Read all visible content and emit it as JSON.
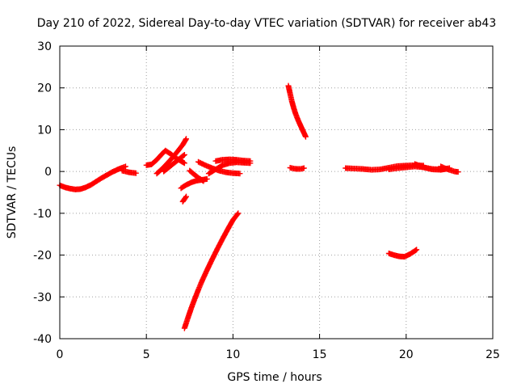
{
  "chart_data": {
    "type": "scatter",
    "title": "Day 210 of 2022, Sidereal Day-to-day VTEC variation (SDTVAR) for receiver ab43",
    "xlabel": "GPS time / hours",
    "ylabel": "SDTVAR / TECUs",
    "xlim": [
      0,
      25
    ],
    "ylim": [
      -40,
      30
    ],
    "xticks": [
      "0",
      "5",
      "10",
      "15",
      "20",
      "25"
    ],
    "yticks": [
      "30",
      "20",
      "10",
      "0",
      "-10",
      "-20",
      "-30",
      "-40"
    ],
    "grid": true,
    "marker": "plus",
    "color": "#ff0000",
    "series": [
      {
        "x": [
          0.0,
          0.3,
          0.6,
          0.9,
          1.2,
          1.5,
          1.8,
          2.1,
          2.4,
          2.7,
          3.0,
          3.3,
          3.6,
          3.8
        ],
        "y": [
          -3.3,
          -3.8,
          -4.1,
          -4.3,
          -4.2,
          -3.8,
          -3.2,
          -2.4,
          -1.6,
          -0.9,
          -0.2,
          0.4,
          0.9,
          1.2
        ]
      },
      {
        "x": [
          3.6,
          3.8,
          4.0,
          4.2,
          4.4
        ],
        "y": [
          0.2,
          0.0,
          -0.2,
          -0.3,
          -0.4
        ]
      },
      {
        "x": [
          5.0,
          5.3,
          5.6,
          5.9,
          6.1,
          6.4,
          6.7,
          7.0,
          7.2
        ],
        "y": [
          1.5,
          1.7,
          2.8,
          4.2,
          5.0,
          4.2,
          3.2,
          2.5,
          2.0
        ]
      },
      {
        "x": [
          5.6,
          5.9,
          6.2,
          6.5,
          6.8,
          7.1,
          7.3
        ],
        "y": [
          -0.5,
          0.6,
          1.9,
          3.3,
          4.8,
          6.4,
          7.8
        ]
      },
      {
        "x": [
          6.0,
          6.3,
          6.6,
          6.9,
          7.2
        ],
        "y": [
          0.0,
          1.0,
          2.0,
          3.0,
          4.0
        ]
      },
      {
        "x": [
          7.0,
          7.3,
          7.6,
          7.9,
          8.2,
          8.5
        ],
        "y": [
          -4.0,
          -3.2,
          -2.6,
          -2.2,
          -2.0,
          -1.8
        ]
      },
      {
        "x": [
          7.1,
          7.3
        ],
        "y": [
          -7.2,
          -6.0
        ]
      },
      {
        "x": [
          7.5,
          7.7,
          8.0,
          8.3
        ],
        "y": [
          0.2,
          -0.5,
          -1.5,
          -2.3
        ]
      },
      {
        "x": [
          8.0,
          8.4,
          8.8,
          9.2,
          9.6,
          10.0,
          10.4
        ],
        "y": [
          2.3,
          1.5,
          0.8,
          0.2,
          -0.2,
          -0.4,
          -0.5
        ]
      },
      {
        "x": [
          8.6,
          9.0,
          9.4,
          9.8,
          10.2,
          10.6,
          11.0
        ],
        "y": [
          -0.5,
          0.5,
          1.5,
          2.0,
          2.2,
          2.1,
          2.0
        ]
      },
      {
        "x": [
          9.0,
          9.4,
          9.8,
          10.2,
          10.6,
          11.0
        ],
        "y": [
          2.5,
          2.8,
          2.9,
          2.8,
          2.6,
          2.5
        ]
      },
      {
        "x": [
          7.2,
          7.4,
          7.6,
          7.8,
          8.0,
          8.2,
          8.5,
          8.8,
          9.1,
          9.4,
          9.7,
          10.0,
          10.3
        ],
        "y": [
          -37.5,
          -35.0,
          -32.6,
          -30.4,
          -28.3,
          -26.3,
          -23.6,
          -21.0,
          -18.5,
          -16.1,
          -13.8,
          -11.6,
          -10.0
        ]
      },
      {
        "x": [
          13.2,
          13.3,
          13.4,
          13.5,
          13.6,
          13.7,
          13.8,
          13.9,
          14.0,
          14.1,
          14.2
        ],
        "y": [
          20.5,
          18.6,
          16.8,
          15.3,
          14.0,
          12.9,
          11.9,
          11.0,
          10.1,
          9.2,
          8.3
        ]
      },
      {
        "x": [
          13.3,
          13.5,
          13.7,
          13.9,
          14.1
        ],
        "y": [
          0.9,
          0.7,
          0.6,
          0.6,
          0.8
        ]
      },
      {
        "x": [
          16.5,
          17.0,
          17.5,
          18.0,
          18.5,
          19.0,
          19.5,
          20.0,
          20.5,
          21.0
        ],
        "y": [
          0.8,
          0.7,
          0.6,
          0.4,
          0.5,
          0.9,
          1.3,
          1.4,
          1.5,
          1.4
        ]
      },
      {
        "x": [
          19.0,
          19.5,
          20.0,
          20.5,
          21.0,
          21.5,
          22.0,
          22.5
        ],
        "y": [
          0.5,
          0.8,
          1.0,
          1.2,
          1.0,
          0.6,
          0.5,
          0.8
        ]
      },
      {
        "x": [
          20.5,
          21.0,
          21.5,
          22.0,
          22.3
        ],
        "y": [
          1.8,
          1.0,
          0.5,
          0.4,
          0.6
        ]
      },
      {
        "x": [
          22.0,
          22.4,
          22.8,
          23.0
        ],
        "y": [
          1.2,
          0.5,
          0.0,
          -0.1
        ]
      },
      {
        "x": [
          19.0,
          19.3,
          19.6,
          19.9,
          20.2,
          20.5,
          20.6
        ],
        "y": [
          -19.6,
          -20.0,
          -20.3,
          -20.4,
          -19.8,
          -19.0,
          -18.7
        ]
      }
    ]
  }
}
